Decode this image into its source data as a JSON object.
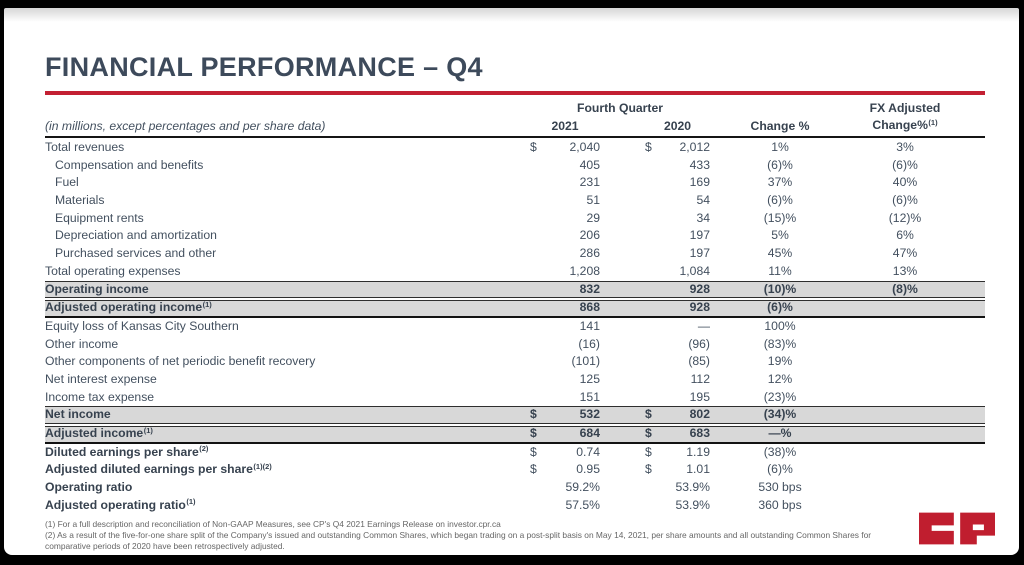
{
  "slide": {
    "title": "FINANCIAL PERFORMANCE – Q4",
    "logo_text": "CP"
  },
  "table": {
    "caption": "(in millions, except percentages and per share data)",
    "col_group_header": "Fourth Quarter",
    "columns": {
      "y2021": "2021",
      "y2020": "2020",
      "change": "Change %",
      "fx_line1": "FX Adjusted",
      "fx_line2": "Change%",
      "fx_sup": "(1)"
    },
    "rows": [
      {
        "label": "Total revenues",
        "sup": "",
        "indent": false,
        "band": false,
        "bold_label": false,
        "thick": false,
        "d21": "$",
        "v21": "2,040",
        "d20": "$",
        "v20": "2,012",
        "chg": "1%",
        "fx": "3%"
      },
      {
        "label": "Compensation and benefits",
        "sup": "",
        "indent": true,
        "band": false,
        "bold_label": false,
        "thick": false,
        "d21": "",
        "v21": "405",
        "d20": "",
        "v20": "433",
        "chg": "(6)%",
        "fx": "(6)%"
      },
      {
        "label": "Fuel",
        "sup": "",
        "indent": true,
        "band": false,
        "bold_label": false,
        "thick": false,
        "d21": "",
        "v21": "231",
        "d20": "",
        "v20": "169",
        "chg": "37%",
        "fx": "40%"
      },
      {
        "label": "Materials",
        "sup": "",
        "indent": true,
        "band": false,
        "bold_label": false,
        "thick": false,
        "d21": "",
        "v21": "51",
        "d20": "",
        "v20": "54",
        "chg": "(6)%",
        "fx": "(6)%"
      },
      {
        "label": "Equipment rents",
        "sup": "",
        "indent": true,
        "band": false,
        "bold_label": false,
        "thick": false,
        "d21": "",
        "v21": "29",
        "d20": "",
        "v20": "34",
        "chg": "(15)%",
        "fx": "(12)%"
      },
      {
        "label": "Depreciation and amortization",
        "sup": "",
        "indent": true,
        "band": false,
        "bold_label": false,
        "thick": false,
        "d21": "",
        "v21": "206",
        "d20": "",
        "v20": "197",
        "chg": "5%",
        "fx": "6%"
      },
      {
        "label": "Purchased services and other",
        "sup": "",
        "indent": true,
        "band": false,
        "bold_label": false,
        "thick": false,
        "d21": "",
        "v21": "286",
        "d20": "",
        "v20": "197",
        "chg": "45%",
        "fx": "47%"
      },
      {
        "label": "Total operating expenses",
        "sup": "",
        "indent": false,
        "band": false,
        "bold_label": false,
        "thick": false,
        "d21": "",
        "v21": "1,208",
        "d20": "",
        "v20": "1,084",
        "chg": "11%",
        "fx": "13%"
      },
      {
        "label": "Operating income",
        "sup": "",
        "indent": false,
        "band": true,
        "bold_label": false,
        "thick": false,
        "d21": "",
        "v21": "832",
        "d20": "",
        "v20": "928",
        "chg": "(10)%",
        "fx": "(8)%"
      },
      {
        "label": "Adjusted operating income",
        "sup": "(1)",
        "indent": false,
        "band": true,
        "bold_label": false,
        "thick": true,
        "d21": "",
        "v21": "868",
        "d20": "",
        "v20": "928",
        "chg": "(6)%",
        "fx": ""
      },
      {
        "label": "Equity loss of Kansas City Southern",
        "sup": "",
        "indent": false,
        "band": false,
        "bold_label": false,
        "thick": false,
        "d21": "",
        "v21": "141",
        "d20": "",
        "v20": "—",
        "chg": "100%",
        "fx": ""
      },
      {
        "label": "Other income",
        "sup": "",
        "indent": false,
        "band": false,
        "bold_label": false,
        "thick": false,
        "d21": "",
        "v21": "(16)",
        "d20": "",
        "v20": "(96)",
        "chg": "(83)%",
        "fx": ""
      },
      {
        "label": "Other components of net periodic benefit recovery",
        "sup": "",
        "indent": false,
        "band": false,
        "bold_label": false,
        "thick": false,
        "d21": "",
        "v21": "(101)",
        "d20": "",
        "v20": "(85)",
        "chg": "19%",
        "fx": ""
      },
      {
        "label": "Net interest expense",
        "sup": "",
        "indent": false,
        "band": false,
        "bold_label": false,
        "thick": false,
        "d21": "",
        "v21": "125",
        "d20": "",
        "v20": "112",
        "chg": "12%",
        "fx": ""
      },
      {
        "label": "Income tax expense",
        "sup": "",
        "indent": false,
        "band": false,
        "bold_label": false,
        "thick": false,
        "d21": "",
        "v21": "151",
        "d20": "",
        "v20": "195",
        "chg": "(23)%",
        "fx": ""
      },
      {
        "label": "Net income",
        "sup": "",
        "indent": false,
        "band": true,
        "bold_label": false,
        "thick": false,
        "d21": "$",
        "v21": "532",
        "d20": "$",
        "v20": "802",
        "chg": "(34)%",
        "fx": ""
      },
      {
        "label": "Adjusted income",
        "sup": "(1)",
        "indent": false,
        "band": true,
        "bold_label": false,
        "thick": true,
        "d21": "$",
        "v21": "684",
        "d20": "$",
        "v20": "683",
        "chg": "—%",
        "fx": ""
      },
      {
        "label": "Diluted earnings per share",
        "sup": "(2)",
        "indent": false,
        "band": false,
        "bold_label": true,
        "thick": false,
        "d21": "$",
        "v21": "0.74",
        "d20": "$",
        "v20": "1.19",
        "chg": "(38)%",
        "fx": ""
      },
      {
        "label": "Adjusted diluted earnings per share",
        "sup": "(1)(2)",
        "indent": false,
        "band": false,
        "bold_label": true,
        "thick": false,
        "d21": "$",
        "v21": "0.95",
        "d20": "$",
        "v20": "1.01",
        "chg": "(6)%",
        "fx": ""
      },
      {
        "label": "Operating ratio",
        "sup": "",
        "indent": false,
        "band": false,
        "bold_label": true,
        "thick": false,
        "d21": "",
        "v21": "59.2%",
        "d20": "",
        "v20": "53.9%",
        "chg": "530 bps",
        "fx": ""
      },
      {
        "label": "Adjusted operating ratio",
        "sup": "(1)",
        "indent": false,
        "band": false,
        "bold_label": true,
        "thick": false,
        "d21": "",
        "v21": "57.5%",
        "d20": "",
        "v20": "53.9%",
        "chg": "360 bps",
        "fx": ""
      }
    ]
  },
  "footnotes": [
    "(1) For a full description and reconciliation of Non-GAAP Measures, see CP's Q4 2021 Earnings Release on investor.cpr.ca",
    "(2) As a result of the five-for-one share split of the Company's issued and outstanding Common Shares, which began trading on a post-split basis on May 14, 2021, per share amounts and all outstanding Common Shares for comparative periods of 2020 have been retrospectively adjusted."
  ],
  "colors": {
    "accent_red": "#C32032",
    "logo_red": "#C01E2F",
    "band_gray": "#D8D8D8",
    "text_dark": "#3D4A5B"
  }
}
